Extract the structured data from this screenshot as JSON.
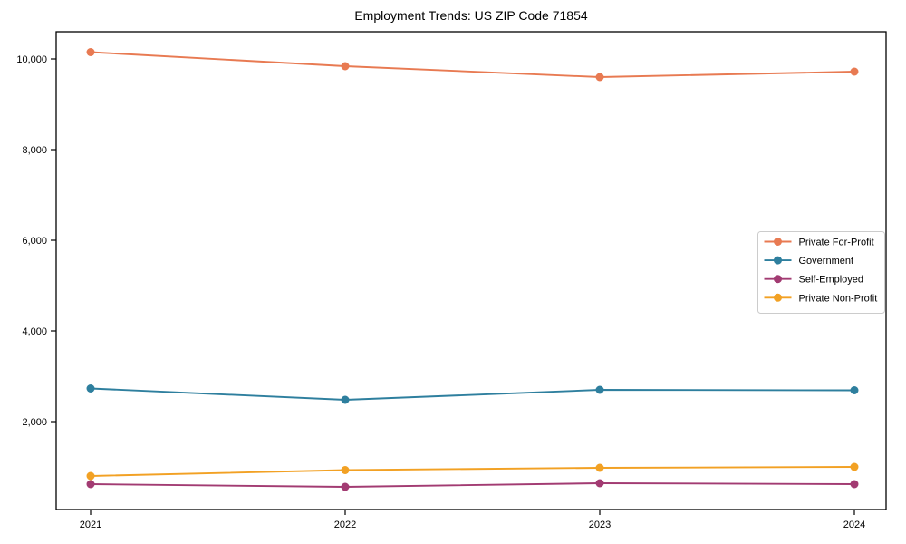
{
  "title": "Employment Trends: US ZIP Code 71854",
  "chart_data": {
    "type": "line",
    "title": "Employment Trends: US ZIP Code 71854",
    "xlabel": "",
    "ylabel": "",
    "x": [
      2021,
      2022,
      2023,
      2024
    ],
    "xtick_labels": [
      "2021",
      "2022",
      "2023",
      "2024"
    ],
    "yticks": [
      2000,
      4000,
      6000,
      8000,
      10000
    ],
    "ytick_labels": [
      "2,000",
      "4,000",
      "6,000",
      "8,000",
      "10,000"
    ],
    "ylim": [
      60,
      10600
    ],
    "grid": false,
    "legend_position": "right-middle",
    "marker": "circle",
    "series": [
      {
        "name": "Private For-Profit",
        "color": "#e87a52",
        "values": [
          10150,
          9840,
          9600,
          9720
        ]
      },
      {
        "name": "Government",
        "color": "#2e7f9e",
        "values": [
          2730,
          2480,
          2700,
          2690
        ]
      },
      {
        "name": "Self-Employed",
        "color": "#a23b72",
        "values": [
          620,
          560,
          640,
          620
        ]
      },
      {
        "name": "Private Non-Profit",
        "color": "#f2a124",
        "values": [
          800,
          930,
          980,
          1000
        ]
      }
    ]
  },
  "colors": {
    "axis": "#000000",
    "legend_border": "#cccccc",
    "background": "#ffffff"
  }
}
